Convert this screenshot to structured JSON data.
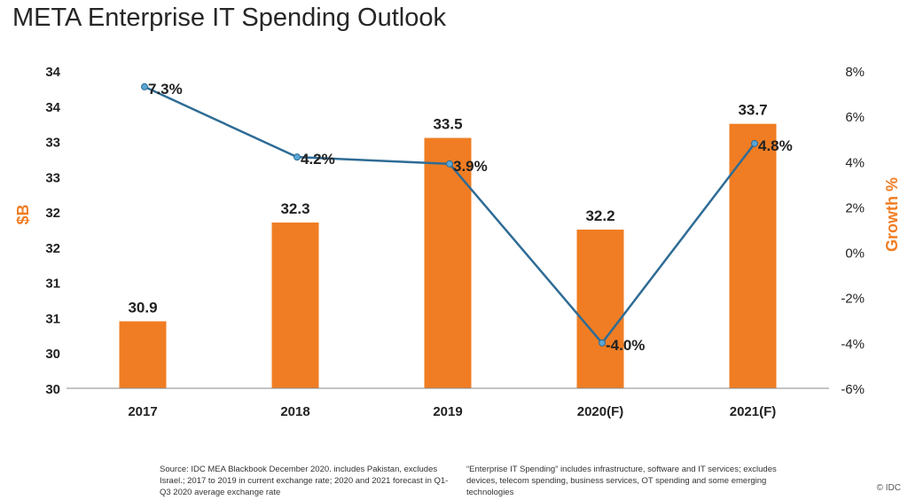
{
  "title": "META Enterprise IT Spending Outlook",
  "chart_data": {
    "type": "bar",
    "categories": [
      "2017",
      "2018",
      "2019",
      "2020(F)",
      "2021(F)"
    ],
    "series": [
      {
        "type": "bar",
        "values": [
          30.9,
          32.3,
          33.5,
          32.2,
          33.7
        ],
        "labels": [
          "30.9",
          "32.3",
          "33.5",
          "32.2",
          "33.7"
        ],
        "color": "#F07D23",
        "axis": "left"
      },
      {
        "type": "line",
        "values": [
          7.3,
          4.2,
          3.9,
          -4.0,
          4.8
        ],
        "labels": [
          "7.3%",
          "4.2%",
          "3.9%",
          "-4.0%",
          "4.8%"
        ],
        "color": "#2F6C95",
        "axis": "right"
      }
    ],
    "ylabel": "$B",
    "y2label": "Growth %",
    "ylim": [
      29.95,
      34.45
    ],
    "y_ticks": [
      "30",
      "30",
      "31",
      "31",
      "32",
      "32",
      "33",
      "33",
      "34",
      "34"
    ],
    "y2lim": [
      -6,
      8
    ],
    "y2_ticks": [
      "-6%",
      "-4%",
      "-2%",
      "0%",
      "2%",
      "4%",
      "6%",
      "8%"
    ],
    "grid": false
  },
  "footnotes": {
    "source": "Source: IDC MEA Blackbook December 2020. includes Pakistan, excludes Israel.; 2017 to 2019 in current exchange rate; 2020 and 2021 forecast in  Q1-Q3 2020 average exchange rate",
    "definition": "“Enterprise IT Spending” includes infrastructure, software and IT services; excludes devices, telecom spending, business services, OT spending and some emerging technologies"
  },
  "copyright": "© IDC"
}
